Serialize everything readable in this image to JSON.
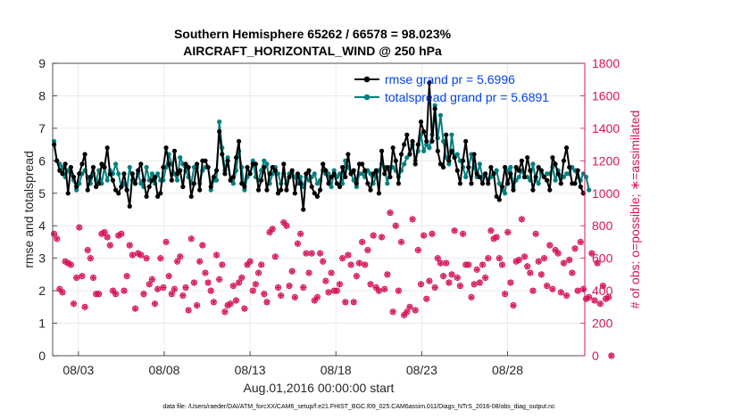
{
  "chart_data": {
    "type": "line",
    "title_line1": "Southern Hemisphere 65262 / 66578 = 98.023%",
    "title_line2": "AIRCRAFT_HORIZONTAL_WIND @ 250 hPa",
    "xlabel": "Aug.01,2016 00:00:00 start",
    "ylabel_left": "rmse and totalspread",
    "ylabel_right": "# of obs: o=possible; ∗=assimilated",
    "footnote": "data file: /Users/raeder/DAI/ATM_forcXX/CAM6_setup/f.e21.FHIST_BGC.f09_025.CAM6assim.011/Diags_NTrS_2016-08/obs_diag_output.nc",
    "xlim": [
      1.5,
      32.5
    ],
    "ylim_left": [
      0,
      9
    ],
    "ylim_right": [
      0,
      1800
    ],
    "xticks": [
      3,
      8,
      13,
      18,
      23,
      28
    ],
    "xtick_labels": [
      "08/03",
      "08/08",
      "08/13",
      "08/18",
      "08/23",
      "08/28"
    ],
    "yticks_left": [
      "0",
      "1",
      "2",
      "3",
      "4",
      "5",
      "6",
      "7",
      "8",
      "9"
    ],
    "yticks_right": [
      "0",
      "200",
      "400",
      "600",
      "800",
      "1000",
      "1200",
      "1400",
      "1600",
      "1800"
    ],
    "colors": {
      "rmse": "#000000",
      "spread": "#008080",
      "obs": "#d6145a",
      "legend_text": "#0044ee",
      "grid": "#e6e6e6"
    },
    "legend": [
      {
        "name": "rmse grand pr = 5.6996"
      },
      {
        "name": "totalspread grand pr = 5.6891"
      }
    ],
    "series": [
      {
        "name": "rmse",
        "values": [
          6.5,
          6.0,
          5.7,
          5.6,
          5.9,
          5.0,
          5.8,
          5.5,
          5.2,
          5.6,
          5.9,
          6.2,
          5.1,
          5.5,
          5.8,
          5.2,
          5.3,
          5.9,
          5.8,
          6.4,
          5.6,
          5.4,
          5.1,
          5.0,
          5.2,
          5.6,
          5.1,
          4.6,
          5.6,
          5.3,
          5.7,
          5.9,
          5.4,
          4.9,
          5.2,
          5.4,
          5.5,
          4.9,
          5.0,
          5.8,
          6.4,
          5.9,
          5.4,
          6.3,
          5.6,
          5.7,
          5.2,
          5.9,
          5.8,
          4.9,
          5.3,
          5.9,
          5.1,
          6.0,
          6.0,
          5.8,
          5.2,
          5.5,
          5.7,
          6.9,
          6.2,
          5.6,
          6.0,
          5.4,
          5.5,
          6.1,
          6.6,
          5.3,
          5.2,
          5.8,
          5.6,
          5.9,
          5.9,
          5.1,
          5.4,
          5.8,
          5.1,
          5.6,
          5.8,
          5.7,
          5.0,
          5.1,
          5.9,
          5.1,
          5.5,
          5.7,
          5.0,
          5.6,
          5.3,
          4.5,
          5.6,
          5.7,
          5.2,
          5.0,
          4.9,
          5.1,
          5.9,
          5.7,
          5.3,
          5.5,
          5.6,
          5.3,
          5.2,
          5.8,
          5.5,
          6.2,
          5.6,
          5.7,
          5.3,
          5.9,
          5.9,
          5.7,
          5.3,
          5.1,
          5.6,
          5.7,
          5.0,
          6.3,
          5.6,
          5.8,
          5.5,
          6.4,
          6.0,
          5.3,
          6.2,
          6.5,
          6.8,
          6.2,
          6.6,
          5.9,
          6.5,
          7.2,
          6.9,
          6.6,
          8.4,
          6.6,
          7.6,
          6.3,
          5.9,
          5.8,
          6.8,
          6.0,
          6.3,
          6.1,
          5.7,
          5.3,
          6.0,
          6.6,
          5.8,
          5.3,
          6.2,
          5.6,
          5.5,
          5.3,
          5.6,
          5.3,
          5.8,
          5.6,
          4.9,
          4.8,
          5.2,
          5.8,
          5.3,
          5.6,
          5.1,
          5.8,
          5.7,
          6.0,
          5.5,
          6.1,
          5.7,
          5.1,
          5.5,
          5.8,
          5.7,
          5.5,
          5.4,
          5.1,
          6.1,
          5.9,
          5.6,
          5.3,
          6.0,
          6.4,
          5.8,
          5.3,
          5.3,
          5.7,
          5.2,
          5.0
        ]
      },
      {
        "name": "totalspread",
        "values": [
          6.6,
          6.0,
          5.9,
          5.8,
          5.5,
          5.7,
          5.6,
          5.4,
          5.1,
          5.3,
          5.6,
          5.7,
          5.5,
          5.3,
          5.6,
          5.4,
          5.7,
          5.3,
          5.8,
          5.4,
          5.7,
          5.6,
          5.9,
          5.6,
          5.2,
          5.3,
          5.1,
          5.8,
          5.4,
          5.3,
          5.6,
          5.3,
          5.2,
          5.8,
          5.4,
          5.6,
          5.3,
          5.6,
          5.4,
          5.4,
          5.8,
          6.2,
          5.9,
          5.6,
          5.4,
          6.1,
          5.9,
          5.7,
          5.5,
          5.3,
          5.8,
          5.8,
          5.3,
          5.7,
          5.8,
          5.8,
          5.1,
          5.4,
          5.4,
          7.2,
          6.4,
          5.7,
          6.1,
          5.4,
          5.3,
          5.7,
          6.3,
          5.8,
          5.1,
          5.5,
          5.6,
          6.0,
          5.5,
          5.4,
          5.7,
          6.0,
          5.9,
          5.3,
          5.6,
          5.8,
          5.6,
          5.3,
          5.6,
          5.3,
          5.6,
          5.6,
          5.5,
          5.3,
          5.5,
          5.2,
          5.5,
          5.4,
          5.5,
          5.6,
          5.3,
          5.4,
          5.7,
          5.6,
          5.6,
          5.2,
          5.7,
          5.5,
          5.6,
          5.3,
          6.0,
          5.8,
          5.6,
          5.4,
          5.2,
          5.6,
          5.6,
          5.5,
          5.7,
          5.6,
          5.3,
          5.5,
          5.7,
          5.9,
          5.8,
          5.3,
          5.8,
          5.8,
          5.7,
          5.5,
          5.7,
          5.9,
          6.1,
          6.2,
          6.5,
          6.0,
          6.3,
          6.8,
          6.3,
          6.5,
          6.4,
          6.8,
          7.7,
          6.7,
          7.4,
          6.6,
          6.1,
          5.9,
          6.8,
          6.1,
          6.2,
          6.0,
          5.8,
          5.5,
          5.8,
          6.2,
          5.8,
          5.5,
          5.9,
          5.5,
          5.6,
          5.4,
          5.5,
          5.6,
          5.7,
          5.3,
          5.1,
          5.0,
          5.7,
          5.8,
          5.2,
          5.4,
          5.5,
          5.7,
          5.5,
          5.5,
          5.4,
          5.9,
          5.4,
          5.3,
          5.6,
          5.5,
          5.6,
          5.6,
          5.8,
          5.4,
          5.7,
          5.5,
          5.5,
          5.6,
          5.6,
          5.8,
          5.7,
          5.5,
          5.4,
          5.6,
          5.5,
          5.1
        ]
      },
      {
        "name": "obs_counts",
        "values": [
          750,
          720,
          410,
          390,
          580,
          570,
          560,
          320,
          480,
          790,
          490,
          300,
          650,
          600,
          480,
          380,
          380,
          750,
          760,
          730,
          680,
          400,
          380,
          740,
          750,
          400,
          490,
          680,
          620,
          290,
          630,
          620,
          380,
          600,
          440,
          470,
          320,
          410,
          600,
          420,
          700,
          490,
          380,
          410,
          580,
          610,
          370,
          420,
          280,
          720,
          450,
          310,
          580,
          680,
          510,
          450,
          400,
          330,
          620,
          470,
          560,
          270,
          310,
          320,
          430,
          340,
          450,
          480,
          290,
          560,
          580,
          400,
          440,
          510,
          560,
          380,
          330,
          760,
          780,
          610,
          420,
          370,
          820,
          800,
          430,
          520,
          360,
          690,
          750,
          420,
          630,
          510,
          630,
          340,
          360,
          630,
          580,
          460,
          390,
          510,
          400,
          400,
          440,
          600,
          330,
          620,
          560,
          330,
          490,
          570,
          700,
          560,
          650,
          440,
          740,
          420,
          400,
          730,
          410,
          500,
          880,
          270,
          800,
          400,
          700,
          250,
          270,
          300,
          840,
          280,
          650,
          440,
          740,
          350,
          460,
          750,
          420,
          600,
          570,
          490,
          570,
          450,
          500,
          770,
          480,
          430,
          750,
          560,
          560,
          360,
          440,
          530,
          450,
          560,
          480,
          600,
          770,
          720,
          730,
          600,
          560,
          380,
          760,
          450,
          310,
          580,
          590,
          840,
          610,
          550,
          510,
          400,
          750,
          580,
          500,
          600,
          430,
          680,
          410,
          650,
          630,
          390,
          570,
          370,
          590,
          510,
          660,
          400,
          700,
          410,
          350,
          360,
          630,
          340,
          570,
          320,
          430,
          350,
          360,
          0
        ]
      }
    ]
  }
}
